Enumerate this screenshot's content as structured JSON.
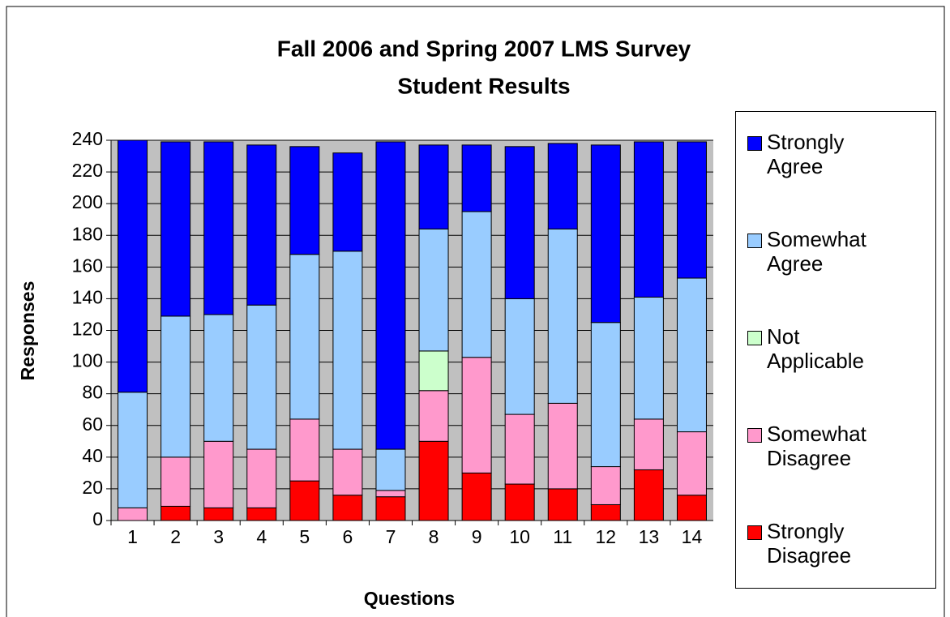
{
  "chart_data": {
    "type": "stacked_bar",
    "title": [
      "Fall 2006 and Spring 2007 LMS Survey",
      "Student Results"
    ],
    "x_label": "Questions",
    "y_label": "Responses",
    "categories": [
      "1",
      "2",
      "3",
      "4",
      "5",
      "6",
      "7",
      "8",
      "9",
      "10",
      "11",
      "12",
      "13",
      "14"
    ],
    "series": [
      {
        "name": "Strongly Disagree",
        "color": "#ff0000",
        "values": [
          0,
          9,
          8,
          8,
          25,
          16,
          15,
          50,
          30,
          23,
          20,
          10,
          32,
          16
        ]
      },
      {
        "name": "Somewhat Disagree",
        "color": "#ff99cc",
        "values": [
          8,
          31,
          42,
          37,
          39,
          29,
          4,
          32,
          73,
          44,
          54,
          24,
          32,
          40
        ]
      },
      {
        "name": "Not Applicable",
        "color": "#ccffcc",
        "values": [
          0,
          0,
          0,
          0,
          0,
          0,
          0,
          25,
          0,
          0,
          0,
          0,
          0,
          0
        ]
      },
      {
        "name": "Somewhat Agree",
        "color": "#99ccff",
        "values": [
          73,
          89,
          80,
          91,
          104,
          125,
          26,
          77,
          92,
          73,
          110,
          91,
          77,
          97
        ]
      },
      {
        "name": "Strongly Agree",
        "color": "#0000ff",
        "values": [
          159,
          110,
          109,
          101,
          68,
          62,
          194,
          53,
          42,
          96,
          54,
          112,
          98,
          86
        ]
      }
    ],
    "ylim": [
      0,
      240
    ],
    "yticks": [
      0,
      20,
      40,
      60,
      80,
      100,
      120,
      140,
      160,
      180,
      200,
      220,
      240
    ],
    "grid": true,
    "legend": "right"
  }
}
